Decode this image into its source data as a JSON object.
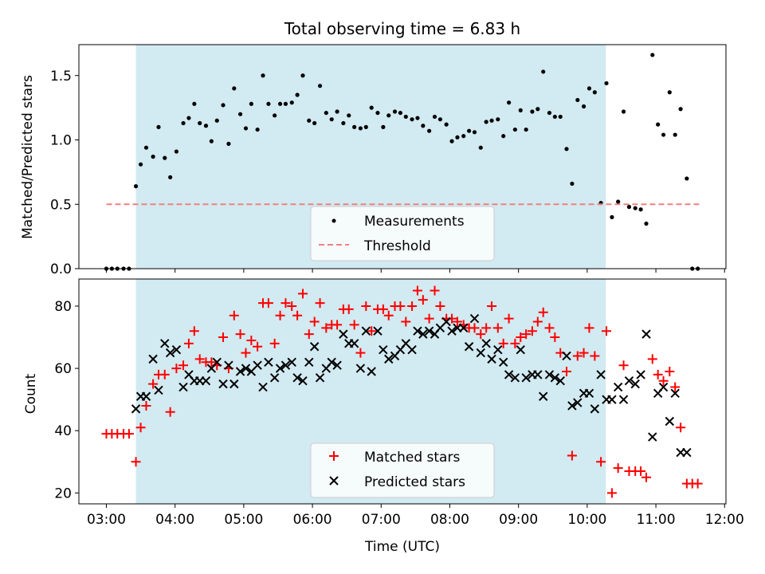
{
  "chart_data": [
    {
      "type": "scatter",
      "title": "Total observing time = 6.83 h",
      "xlabel": "",
      "ylabel": "Matched/Predicted stars",
      "xlim": [
        2.6,
        12.02
      ],
      "ylim": [
        0.0,
        1.74
      ],
      "yticks": [
        0.0,
        0.5,
        1.0,
        1.5
      ],
      "ytick_labels": [
        "0.0",
        "0.5",
        "1.0",
        "1.5"
      ],
      "xticks": [
        3,
        4,
        5,
        6,
        7,
        8,
        9,
        10,
        11,
        12
      ],
      "shaded_x": [
        3.43,
        10.27
      ],
      "shade_color": "#add8e6",
      "legend_position": "lower-center",
      "series": [
        {
          "name": "Measurements",
          "color": "#000000",
          "x": [
            3.0,
            3.08,
            3.16,
            3.25,
            3.33,
            3.43,
            3.5,
            3.58,
            3.68,
            3.76,
            3.85,
            3.93,
            4.02,
            4.12,
            4.2,
            4.28,
            4.36,
            4.45,
            4.53,
            4.61,
            4.7,
            4.78,
            4.86,
            4.95,
            5.03,
            5.11,
            5.2,
            5.28,
            5.36,
            5.45,
            5.53,
            5.61,
            5.7,
            5.78,
            5.86,
            5.95,
            6.03,
            6.11,
            6.2,
            6.28,
            6.36,
            6.45,
            6.53,
            6.61,
            6.7,
            6.78,
            6.86,
            6.95,
            7.03,
            7.11,
            7.2,
            7.28,
            7.36,
            7.45,
            7.53,
            7.61,
            7.7,
            7.78,
            7.86,
            7.95,
            8.03,
            8.11,
            8.2,
            8.28,
            8.36,
            8.45,
            8.53,
            8.61,
            8.7,
            8.78,
            8.86,
            8.95,
            9.03,
            9.11,
            9.2,
            9.28,
            9.36,
            9.45,
            9.53,
            9.61,
            9.7,
            9.78,
            9.86,
            9.95,
            10.03,
            10.11,
            10.2,
            10.28,
            10.36,
            10.45,
            10.53,
            10.61,
            10.7,
            10.78,
            10.86,
            10.95,
            11.03,
            11.11,
            11.2,
            11.28,
            11.36,
            11.45,
            11.53,
            11.61
          ],
          "y": [
            0.0,
            0.0,
            0.0,
            0.0,
            0.0,
            0.64,
            0.81,
            0.94,
            0.87,
            1.1,
            0.86,
            0.71,
            0.91,
            1.13,
            1.17,
            1.28,
            1.13,
            1.11,
            0.99,
            1.15,
            1.27,
            0.97,
            1.4,
            1.2,
            1.09,
            1.28,
            1.08,
            1.5,
            1.28,
            1.19,
            1.28,
            1.28,
            1.29,
            1.35,
            1.5,
            1.15,
            1.13,
            1.42,
            1.21,
            1.16,
            1.22,
            1.13,
            1.19,
            1.1,
            1.09,
            1.1,
            1.25,
            1.21,
            1.1,
            1.19,
            1.22,
            1.21,
            1.18,
            1.16,
            1.17,
            1.11,
            1.07,
            1.18,
            1.16,
            1.12,
            0.99,
            1.02,
            1.03,
            1.07,
            1.06,
            0.94,
            1.14,
            1.15,
            1.16,
            1.03,
            1.29,
            1.08,
            1.23,
            1.08,
            1.22,
            1.24,
            1.53,
            1.21,
            1.18,
            1.18,
            0.93,
            0.66,
            1.31,
            1.26,
            1.4,
            1.37,
            0.51,
            1.44,
            0.4,
            0.52,
            1.22,
            0.48,
            0.47,
            0.46,
            0.35,
            1.66,
            1.12,
            1.04,
            1.37,
            1.04,
            1.24,
            0.7,
            0.0,
            0.0
          ]
        },
        {
          "name": "Threshold",
          "color": "#f08080",
          "style": "dashed",
          "x": [
            3.0,
            11.63
          ],
          "y": [
            0.5,
            0.5
          ]
        }
      ]
    },
    {
      "type": "scatter",
      "title": "",
      "xlabel": "Time (UTC)",
      "ylabel": "Count",
      "xlim": [
        2.6,
        12.02
      ],
      "ylim": [
        16.5,
        88.7
      ],
      "yticks": [
        20,
        40,
        60,
        80
      ],
      "ytick_labels": [
        "20",
        "40",
        "60",
        "80"
      ],
      "xticks": [
        3,
        4,
        5,
        6,
        7,
        8,
        9,
        10,
        11,
        12
      ],
      "xtick_labels": [
        "03:00",
        "04:00",
        "05:00",
        "06:00",
        "07:00",
        "08:00",
        "09:00",
        "10:00",
        "11:00",
        "12:00"
      ],
      "shaded_x": [
        3.43,
        10.27
      ],
      "shade_color": "#add8e6",
      "legend_position": "lower-center",
      "series": [
        {
          "name": "Matched stars",
          "color": "#ff0000",
          "marker": "plus",
          "x": [
            3.0,
            3.08,
            3.16,
            3.25,
            3.33,
            3.43,
            3.5,
            3.58,
            3.68,
            3.76,
            3.85,
            3.93,
            4.02,
            4.12,
            4.2,
            4.28,
            4.36,
            4.45,
            4.53,
            4.61,
            4.7,
            4.78,
            4.86,
            4.95,
            5.03,
            5.11,
            5.2,
            5.28,
            5.36,
            5.45,
            5.53,
            5.61,
            5.7,
            5.78,
            5.86,
            5.95,
            6.03,
            6.11,
            6.2,
            6.28,
            6.36,
            6.45,
            6.53,
            6.61,
            6.7,
            6.78,
            6.86,
            6.95,
            7.03,
            7.11,
            7.2,
            7.28,
            7.36,
            7.45,
            7.53,
            7.61,
            7.7,
            7.78,
            7.86,
            7.95,
            8.03,
            8.11,
            8.2,
            8.28,
            8.36,
            8.45,
            8.53,
            8.61,
            8.7,
            8.78,
            8.86,
            8.95,
            9.03,
            9.11,
            9.2,
            9.28,
            9.36,
            9.45,
            9.53,
            9.61,
            9.7,
            9.78,
            9.86,
            9.95,
            10.03,
            10.11,
            10.2,
            10.28,
            10.36,
            10.45,
            10.53,
            10.61,
            10.7,
            10.78,
            10.86,
            10.95,
            11.03,
            11.11,
            11.2,
            11.28,
            11.36,
            11.45,
            11.53,
            11.61
          ],
          "y": [
            39,
            39,
            39,
            39,
            39,
            30,
            41,
            48,
            55,
            58,
            58,
            46,
            60,
            61,
            68,
            72,
            63,
            62,
            62,
            61,
            70,
            60,
            77,
            71,
            65,
            69,
            67,
            81,
            81,
            68,
            77,
            81,
            80,
            77,
            84,
            71,
            75,
            81,
            73,
            74,
            74,
            79,
            79,
            74,
            65,
            80,
            72,
            79,
            79,
            77,
            80,
            80,
            75,
            80,
            85,
            82,
            76,
            85,
            80,
            76,
            76,
            75,
            74,
            73,
            73,
            71,
            73,
            80,
            73,
            68,
            76,
            68,
            70,
            71,
            72,
            75,
            78,
            73,
            70,
            65,
            59,
            32,
            64,
            65,
            73,
            64,
            30,
            72,
            20,
            28,
            61,
            27,
            27,
            27,
            25,
            63,
            58,
            56,
            59,
            54,
            41,
            23,
            23,
            23
          ]
        },
        {
          "name": "Predicted stars",
          "color": "#000000",
          "marker": "x",
          "x": [
            3.43,
            3.5,
            3.58,
            3.68,
            3.76,
            3.85,
            3.93,
            4.02,
            4.12,
            4.2,
            4.28,
            4.36,
            4.45,
            4.53,
            4.61,
            4.7,
            4.78,
            4.86,
            4.95,
            5.03,
            5.11,
            5.2,
            5.28,
            5.36,
            5.45,
            5.53,
            5.61,
            5.7,
            5.78,
            5.86,
            5.95,
            6.03,
            6.11,
            6.2,
            6.28,
            6.36,
            6.45,
            6.53,
            6.61,
            6.7,
            6.78,
            6.86,
            6.95,
            7.03,
            7.11,
            7.2,
            7.28,
            7.36,
            7.45,
            7.53,
            7.61,
            7.7,
            7.78,
            7.86,
            7.95,
            8.03,
            8.11,
            8.2,
            8.28,
            8.36,
            8.45,
            8.53,
            8.61,
            8.7,
            8.78,
            8.86,
            8.95,
            9.03,
            9.11,
            9.2,
            9.28,
            9.36,
            9.45,
            9.53,
            9.61,
            9.7,
            9.78,
            9.86,
            9.95,
            10.03,
            10.11,
            10.2,
            10.28,
            10.36,
            10.45,
            10.53,
            10.61,
            10.7,
            10.78,
            10.86,
            10.95,
            11.03,
            11.11,
            11.2,
            11.28,
            11.36,
            11.45
          ],
          "y": [
            47,
            51,
            51,
            63,
            53,
            68,
            65,
            66,
            54,
            58,
            56,
            56,
            56,
            60,
            62,
            55,
            61,
            55,
            59,
            60,
            59,
            61,
            54,
            62,
            57,
            60,
            61,
            62,
            57,
            56,
            62,
            67,
            57,
            60,
            62,
            61,
            71,
            68,
            68,
            60,
            72,
            59,
            72,
            66,
            63,
            64,
            66,
            68,
            66,
            72,
            71,
            72,
            71,
            73,
            75,
            72,
            73,
            73,
            67,
            76,
            65,
            68,
            63,
            66,
            62,
            58,
            57,
            66,
            57,
            58,
            58,
            51,
            58,
            57,
            56,
            64,
            48,
            49,
            52,
            52,
            47,
            58,
            50,
            50,
            54,
            50,
            56,
            55,
            58,
            71,
            38,
            52,
            54,
            43,
            52,
            33,
            33
          ]
        }
      ]
    }
  ]
}
